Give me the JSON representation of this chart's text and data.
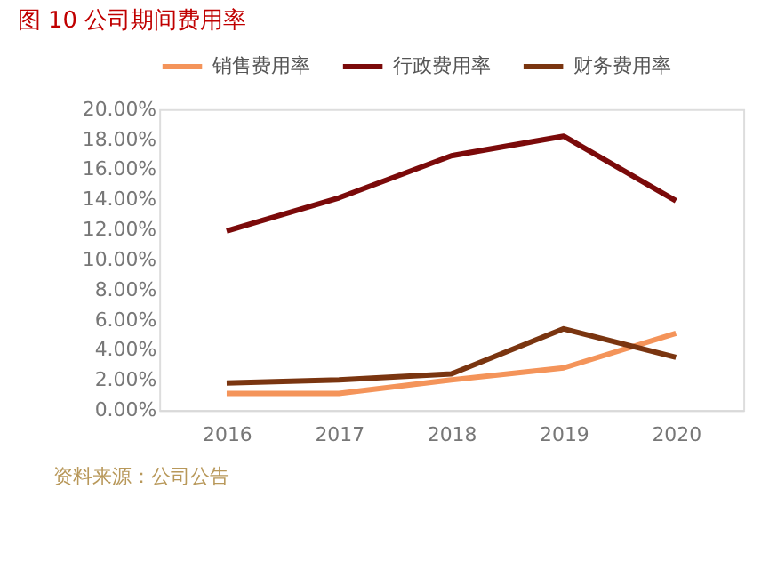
{
  "chart_data": {
    "type": "line",
    "title": "图 10 公司期间费用率",
    "categories": [
      "2016",
      "2017",
      "2018",
      "2019",
      "2020"
    ],
    "series": [
      {
        "name": "销售费用率",
        "color": "#f4945a",
        "values": [
          1.1,
          1.1,
          2.0,
          2.8,
          5.1
        ]
      },
      {
        "name": "行政费用率",
        "color": "#7b0a0a",
        "values": [
          11.9,
          14.1,
          16.9,
          18.2,
          13.9
        ]
      },
      {
        "name": "财务费用率",
        "color": "#7a3510",
        "values": [
          1.8,
          2.0,
          2.4,
          5.4,
          3.5
        ]
      }
    ],
    "ylim": [
      0,
      20
    ],
    "yticks": [
      {
        "value": 0,
        "label": "0.00%"
      },
      {
        "value": 2,
        "label": "2.00%"
      },
      {
        "value": 4,
        "label": "4.00%"
      },
      {
        "value": 6,
        "label": "6.00%"
      },
      {
        "value": 8,
        "label": "8.00%"
      },
      {
        "value": 10,
        "label": "10.00%"
      },
      {
        "value": 12,
        "label": "12.00%"
      },
      {
        "value": 14,
        "label": "14.00%"
      },
      {
        "value": 16,
        "label": "16.00%"
      },
      {
        "value": 18,
        "label": "18.00%"
      },
      {
        "value": 20,
        "label": "20.00%"
      }
    ],
    "grid": false,
    "legend": "top",
    "marker": "none",
    "line_style": "solid",
    "annotations": [
      "资料来源：公司公告"
    ]
  }
}
